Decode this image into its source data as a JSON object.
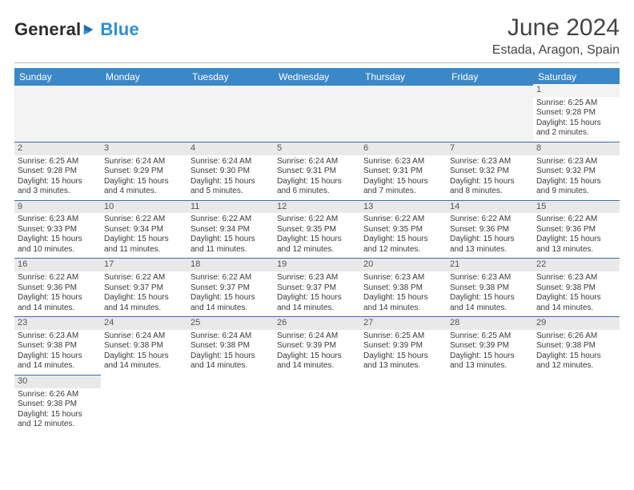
{
  "colors": {
    "header_bg": "#3b88c8",
    "header_text": "#ffffff",
    "daynum_bg": "#e9e9e9",
    "row_border": "#3b6fa8",
    "logo_blue": "#2b8fd6",
    "title_color": "#444444"
  },
  "logo": {
    "a": "General",
    "b": "Blue"
  },
  "title": "June 2024",
  "subtitle": "Estada, Aragon, Spain",
  "weekdays": [
    "Sunday",
    "Monday",
    "Tuesday",
    "Wednesday",
    "Thursday",
    "Friday",
    "Saturday"
  ],
  "weeks": [
    [
      null,
      null,
      null,
      null,
      null,
      null,
      {
        "n": "1",
        "sr": "Sunrise: 6:25 AM",
        "ss": "Sunset: 9:28 PM",
        "d1": "Daylight: 15 hours",
        "d2": "and 2 minutes."
      }
    ],
    [
      {
        "n": "2",
        "sr": "Sunrise: 6:25 AM",
        "ss": "Sunset: 9:28 PM",
        "d1": "Daylight: 15 hours",
        "d2": "and 3 minutes."
      },
      {
        "n": "3",
        "sr": "Sunrise: 6:24 AM",
        "ss": "Sunset: 9:29 PM",
        "d1": "Daylight: 15 hours",
        "d2": "and 4 minutes."
      },
      {
        "n": "4",
        "sr": "Sunrise: 6:24 AM",
        "ss": "Sunset: 9:30 PM",
        "d1": "Daylight: 15 hours",
        "d2": "and 5 minutes."
      },
      {
        "n": "5",
        "sr": "Sunrise: 6:24 AM",
        "ss": "Sunset: 9:31 PM",
        "d1": "Daylight: 15 hours",
        "d2": "and 6 minutes."
      },
      {
        "n": "6",
        "sr": "Sunrise: 6:23 AM",
        "ss": "Sunset: 9:31 PM",
        "d1": "Daylight: 15 hours",
        "d2": "and 7 minutes."
      },
      {
        "n": "7",
        "sr": "Sunrise: 6:23 AM",
        "ss": "Sunset: 9:32 PM",
        "d1": "Daylight: 15 hours",
        "d2": "and 8 minutes."
      },
      {
        "n": "8",
        "sr": "Sunrise: 6:23 AM",
        "ss": "Sunset: 9:32 PM",
        "d1": "Daylight: 15 hours",
        "d2": "and 9 minutes."
      }
    ],
    [
      {
        "n": "9",
        "sr": "Sunrise: 6:23 AM",
        "ss": "Sunset: 9:33 PM",
        "d1": "Daylight: 15 hours",
        "d2": "and 10 minutes."
      },
      {
        "n": "10",
        "sr": "Sunrise: 6:22 AM",
        "ss": "Sunset: 9:34 PM",
        "d1": "Daylight: 15 hours",
        "d2": "and 11 minutes."
      },
      {
        "n": "11",
        "sr": "Sunrise: 6:22 AM",
        "ss": "Sunset: 9:34 PM",
        "d1": "Daylight: 15 hours",
        "d2": "and 11 minutes."
      },
      {
        "n": "12",
        "sr": "Sunrise: 6:22 AM",
        "ss": "Sunset: 9:35 PM",
        "d1": "Daylight: 15 hours",
        "d2": "and 12 minutes."
      },
      {
        "n": "13",
        "sr": "Sunrise: 6:22 AM",
        "ss": "Sunset: 9:35 PM",
        "d1": "Daylight: 15 hours",
        "d2": "and 12 minutes."
      },
      {
        "n": "14",
        "sr": "Sunrise: 6:22 AM",
        "ss": "Sunset: 9:36 PM",
        "d1": "Daylight: 15 hours",
        "d2": "and 13 minutes."
      },
      {
        "n": "15",
        "sr": "Sunrise: 6:22 AM",
        "ss": "Sunset: 9:36 PM",
        "d1": "Daylight: 15 hours",
        "d2": "and 13 minutes."
      }
    ],
    [
      {
        "n": "16",
        "sr": "Sunrise: 6:22 AM",
        "ss": "Sunset: 9:36 PM",
        "d1": "Daylight: 15 hours",
        "d2": "and 14 minutes."
      },
      {
        "n": "17",
        "sr": "Sunrise: 6:22 AM",
        "ss": "Sunset: 9:37 PM",
        "d1": "Daylight: 15 hours",
        "d2": "and 14 minutes."
      },
      {
        "n": "18",
        "sr": "Sunrise: 6:22 AM",
        "ss": "Sunset: 9:37 PM",
        "d1": "Daylight: 15 hours",
        "d2": "and 14 minutes."
      },
      {
        "n": "19",
        "sr": "Sunrise: 6:23 AM",
        "ss": "Sunset: 9:37 PM",
        "d1": "Daylight: 15 hours",
        "d2": "and 14 minutes."
      },
      {
        "n": "20",
        "sr": "Sunrise: 6:23 AM",
        "ss": "Sunset: 9:38 PM",
        "d1": "Daylight: 15 hours",
        "d2": "and 14 minutes."
      },
      {
        "n": "21",
        "sr": "Sunrise: 6:23 AM",
        "ss": "Sunset: 9:38 PM",
        "d1": "Daylight: 15 hours",
        "d2": "and 14 minutes."
      },
      {
        "n": "22",
        "sr": "Sunrise: 6:23 AM",
        "ss": "Sunset: 9:38 PM",
        "d1": "Daylight: 15 hours",
        "d2": "and 14 minutes."
      }
    ],
    [
      {
        "n": "23",
        "sr": "Sunrise: 6:23 AM",
        "ss": "Sunset: 9:38 PM",
        "d1": "Daylight: 15 hours",
        "d2": "and 14 minutes."
      },
      {
        "n": "24",
        "sr": "Sunrise: 6:24 AM",
        "ss": "Sunset: 9:38 PM",
        "d1": "Daylight: 15 hours",
        "d2": "and 14 minutes."
      },
      {
        "n": "25",
        "sr": "Sunrise: 6:24 AM",
        "ss": "Sunset: 9:38 PM",
        "d1": "Daylight: 15 hours",
        "d2": "and 14 minutes."
      },
      {
        "n": "26",
        "sr": "Sunrise: 6:24 AM",
        "ss": "Sunset: 9:39 PM",
        "d1": "Daylight: 15 hours",
        "d2": "and 14 minutes."
      },
      {
        "n": "27",
        "sr": "Sunrise: 6:25 AM",
        "ss": "Sunset: 9:39 PM",
        "d1": "Daylight: 15 hours",
        "d2": "and 13 minutes."
      },
      {
        "n": "28",
        "sr": "Sunrise: 6:25 AM",
        "ss": "Sunset: 9:39 PM",
        "d1": "Daylight: 15 hours",
        "d2": "and 13 minutes."
      },
      {
        "n": "29",
        "sr": "Sunrise: 6:26 AM",
        "ss": "Sunset: 9:38 PM",
        "d1": "Daylight: 15 hours",
        "d2": "and 12 minutes."
      }
    ],
    [
      {
        "n": "30",
        "sr": "Sunrise: 6:26 AM",
        "ss": "Sunset: 9:38 PM",
        "d1": "Daylight: 15 hours",
        "d2": "and 12 minutes."
      },
      null,
      null,
      null,
      null,
      null,
      null
    ]
  ]
}
